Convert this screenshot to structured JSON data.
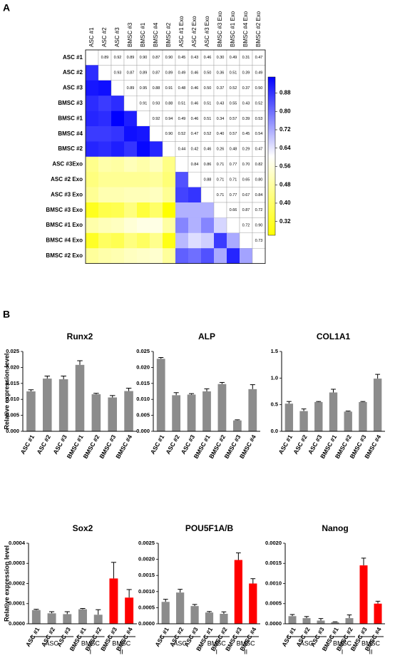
{
  "chart_data": [
    {
      "type": "heatmap",
      "panel_label": "A",
      "columns": [
        "ASC #1",
        "ASC #2",
        "ASC #3",
        "BMSC #3",
        "BMSC #1",
        "BMSC #4",
        "BMSC #2",
        "ASC #1 Exo",
        "ASC #2 Exo",
        "ASC #3 Exo",
        "BMSC #3 Exo",
        "BMSC #1 Exo",
        "BMSC #4 Exo",
        "BMSC #2 Exo"
      ],
      "rows": [
        "ASC #1",
        "ASC #2",
        "ASC #3",
        "BMSC #3",
        "BMSC #1",
        "BMSC #4",
        "BMSC #2",
        "ASC #3Exo",
        "ASC #2 Exo",
        "ASC #3 Exo",
        "BMSC #3 Exo",
        "BMSC #1 Exo",
        "BMSC #4 Exo",
        "BMSC #2 Exo"
      ],
      "values": [
        [
          null,
          0.89,
          0.92,
          0.89,
          0.9,
          0.87,
          0.9,
          0.45,
          0.43,
          0.46,
          0.3,
          0.49,
          0.31,
          0.47
        ],
        [
          null,
          null,
          0.93,
          0.87,
          0.89,
          0.87,
          0.89,
          0.49,
          0.46,
          0.5,
          0.36,
          0.51,
          0.39,
          0.49
        ],
        [
          null,
          null,
          null,
          0.89,
          0.95,
          0.88,
          0.91,
          0.48,
          0.46,
          0.5,
          0.37,
          0.52,
          0.37,
          0.5
        ],
        [
          null,
          null,
          null,
          null,
          0.91,
          0.93,
          0.88,
          0.51,
          0.46,
          0.51,
          0.43,
          0.55,
          0.43,
          0.52
        ],
        [
          null,
          null,
          null,
          null,
          null,
          0.92,
          0.94,
          0.49,
          0.46,
          0.51,
          0.34,
          0.57,
          0.39,
          0.53
        ],
        [
          null,
          null,
          null,
          null,
          null,
          null,
          0.9,
          0.52,
          0.47,
          0.52,
          0.4,
          0.57,
          0.45,
          0.54
        ],
        [
          null,
          null,
          null,
          null,
          null,
          null,
          null,
          0.44,
          0.42,
          0.46,
          0.26,
          0.48,
          0.29,
          0.47
        ],
        [
          null,
          null,
          null,
          null,
          null,
          null,
          null,
          null,
          0.84,
          0.86,
          0.71,
          0.77,
          0.7,
          0.82
        ],
        [
          null,
          null,
          null,
          null,
          null,
          null,
          null,
          null,
          null,
          0.88,
          0.71,
          0.71,
          0.65,
          0.8
        ],
        [
          null,
          null,
          null,
          null,
          null,
          null,
          null,
          null,
          null,
          null,
          0.71,
          0.77,
          0.67,
          0.84
        ],
        [
          null,
          null,
          null,
          null,
          null,
          null,
          null,
          null,
          null,
          null,
          null,
          0.66,
          0.87,
          0.72
        ],
        [
          null,
          null,
          null,
          null,
          null,
          null,
          null,
          null,
          null,
          null,
          null,
          null,
          0.72,
          0.9
        ],
        [
          null,
          null,
          null,
          null,
          null,
          null,
          null,
          null,
          null,
          null,
          null,
          null,
          null,
          0.73
        ],
        [
          null,
          null,
          null,
          null,
          null,
          null,
          null,
          null,
          null,
          null,
          null,
          null,
          null,
          null
        ]
      ],
      "value_labels": [
        [
          null,
          "0.89",
          "0.92",
          "0.89",
          "0.90",
          "0.87",
          "0.90",
          "0.45",
          "0.43",
          "0.46",
          "0.30",
          "0.49",
          "0.31",
          "0.47"
        ],
        [
          null,
          null,
          "0.93",
          "0.87",
          "0.89",
          "0.87",
          "0.89",
          "0.49",
          "0.46",
          "0.50",
          "0.36",
          "0.51",
          "0.39",
          "0.49"
        ],
        [
          null,
          null,
          null,
          "0.89",
          "0.95",
          "0.88",
          "0.91",
          "0.48",
          "0.46",
          "0.50",
          "0.37",
          "0.52",
          "0.37",
          "0.50"
        ],
        [
          null,
          null,
          null,
          null,
          "0.91",
          "0.93",
          "0.88",
          "0.51",
          "0.46",
          "0.51",
          "0.43",
          "0.55",
          "0.43",
          "0.52"
        ],
        [
          null,
          null,
          null,
          null,
          null,
          "0.92",
          "0.94",
          "0.49",
          "0.46",
          "0.51",
          "0.34",
          "0.57",
          "0.39",
          "0.53"
        ],
        [
          null,
          null,
          null,
          null,
          null,
          null,
          "0.90",
          "0.52",
          "0.47",
          "0.52",
          "0.40",
          "0.57",
          "0.45",
          "0.54"
        ],
        [
          null,
          null,
          null,
          null,
          null,
          null,
          null,
          "0.44",
          "0.42",
          "0.46",
          "0.26",
          "0.48",
          "0.29",
          "0.47"
        ],
        [
          null,
          null,
          null,
          null,
          null,
          null,
          null,
          null,
          "0.84",
          "0.86",
          "0.71",
          "0.77",
          "0.70",
          "0.82"
        ],
        [
          null,
          null,
          null,
          null,
          null,
          null,
          null,
          null,
          null,
          "0.88",
          "0.71",
          "0.71",
          "0.65",
          "0.80"
        ],
        [
          null,
          null,
          null,
          null,
          null,
          null,
          null,
          null,
          null,
          null,
          "0.71",
          "0.77",
          "0.67",
          "0.84"
        ],
        [
          null,
          null,
          null,
          null,
          null,
          null,
          null,
          null,
          null,
          null,
          null,
          "0.66",
          "0.87",
          "0.72"
        ],
        [
          null,
          null,
          null,
          null,
          null,
          null,
          null,
          null,
          null,
          null,
          null,
          null,
          "0.72",
          "0.90"
        ],
        [
          null,
          null,
          null,
          null,
          null,
          null,
          null,
          null,
          null,
          null,
          null,
          null,
          null,
          "0.73"
        ],
        [
          null,
          null,
          null,
          null,
          null,
          null,
          null,
          null,
          null,
          null,
          null,
          null,
          null,
          null
        ]
      ],
      "zlim": [
        0.26,
        0.95
      ],
      "zticks": [
        0.88,
        {
          "value": 0.8,
          "label": "0.80"
        },
        0.72,
        0.64,
        0.56,
        0.48,
        {
          "value": 0.4,
          "label": "0.40"
        },
        0.32
      ],
      "colors": [
        "#ffff00",
        "#ffffff",
        "#0000ff"
      ]
    },
    {
      "type": "bar",
      "panel_label": "B",
      "title": "Runx2",
      "ylabel": "Relative expression level",
      "categories": [
        "ASC #1",
        "ASC #2",
        "ASC #3",
        "BMSC #1",
        "BMSC #2",
        "BMSC #3",
        "BMSC #4"
      ],
      "values": [
        0.0125,
        0.0165,
        0.0163,
        0.0208,
        0.0116,
        0.0106,
        0.0126
      ],
      "errors": [
        0.0005,
        0.0008,
        0.001,
        0.0013,
        0.0003,
        0.0006,
        0.0009
      ],
      "colors": [
        "#8c8c8c",
        "#8c8c8c",
        "#8c8c8c",
        "#8c8c8c",
        "#8c8c8c",
        "#8c8c8c",
        "#8c8c8c"
      ],
      "ylim": [
        0,
        0.025
      ],
      "yticks": [
        {
          "value": 0,
          "label": "0.000"
        },
        {
          "value": 0.005,
          "label": "0.005"
        },
        {
          "value": 0.01,
          "label": "0.010"
        },
        {
          "value": 0.015,
          "label": "0.015"
        },
        {
          "value": 0.02,
          "label": "0.020"
        },
        {
          "value": 0.025,
          "label": "0.025"
        }
      ]
    },
    {
      "type": "bar",
      "title": "ALP",
      "categories": [
        "ASC #1",
        "ASC #2",
        "ASC #3",
        "BMSC #1",
        "BMSC #2",
        "BMSC #3",
        "BMSC #4"
      ],
      "values": [
        0.0227,
        0.0113,
        0.0115,
        0.0125,
        0.0148,
        0.0034,
        0.0132
      ],
      "errors": [
        0.0004,
        0.0008,
        0.0003,
        0.0008,
        0.0005,
        0.0002,
        0.0014
      ],
      "colors": [
        "#8c8c8c",
        "#8c8c8c",
        "#8c8c8c",
        "#8c8c8c",
        "#8c8c8c",
        "#8c8c8c",
        "#8c8c8c"
      ],
      "ylim": [
        0,
        0.025
      ],
      "yticks": [
        {
          "value": 0,
          "label": "0.000"
        },
        {
          "value": 0.005,
          "label": "0.005"
        },
        {
          "value": 0.01,
          "label": "0.010"
        },
        {
          "value": 0.015,
          "label": "0.015"
        },
        {
          "value": 0.02,
          "label": "0.020"
        },
        {
          "value": 0.025,
          "label": "0.025"
        }
      ]
    },
    {
      "type": "bar",
      "title": "COL1A1",
      "categories": [
        "ASC #1",
        "ASC #2",
        "ASC #3",
        "BMSC #1",
        "BMSC #2",
        "BMSC #3",
        "BMSC #4"
      ],
      "values": [
        0.52,
        0.38,
        0.55,
        0.73,
        0.37,
        0.55,
        0.99
      ],
      "errors": [
        0.04,
        0.04,
        0.01,
        0.06,
        0.01,
        0.01,
        0.08
      ],
      "colors": [
        "#8c8c8c",
        "#8c8c8c",
        "#8c8c8c",
        "#8c8c8c",
        "#8c8c8c",
        "#8c8c8c",
        "#8c8c8c"
      ],
      "ylim": [
        0,
        1.5
      ],
      "yticks": [
        {
          "value": 0,
          "label": "0.0"
        },
        0.5,
        {
          "value": 1,
          "label": "1.0"
        },
        1.5
      ]
    },
    {
      "type": "bar",
      "title": "Sox2",
      "ylabel": "Relative expression level",
      "categories": [
        "ASC #1",
        "ASC #2",
        "ASC #3",
        "BMSC #1",
        "BMSC #2",
        "BMSC #3",
        "BMSC #4"
      ],
      "values": [
        6.8e-05,
        5.2e-05,
        4.8e-05,
        7.2e-05,
        4.5e-05,
        0.000225,
        0.00013
      ],
      "errors": [
        4e-06,
        8e-06,
        1.2e-05,
        4e-06,
        2.5e-05,
        8e-05,
        4e-05
      ],
      "colors": [
        "#8c8c8c",
        "#8c8c8c",
        "#8c8c8c",
        "#8c8c8c",
        "#8c8c8c",
        "#ff0000",
        "#ff0000"
      ],
      "ylim": [
        0,
        0.0004
      ],
      "yticks": [
        {
          "value": 0,
          "label": "0.0000"
        },
        {
          "value": 0.0001,
          "label": "0.0001"
        },
        {
          "value": 0.0002,
          "label": "0.0002"
        },
        {
          "value": 0.0003,
          "label": "0.0003"
        },
        {
          "value": 0.0004,
          "label": "0.0004"
        }
      ],
      "groups": [
        {
          "name": "ASC",
          "members": [
            0,
            1,
            2
          ]
        },
        {
          "name": "BMSC",
          "sub": "I",
          "members": [
            3,
            4
          ]
        },
        {
          "name": "BMSC",
          "sub": "II",
          "members": [
            5,
            6
          ]
        }
      ]
    },
    {
      "type": "bar",
      "title": "POU5F1A/B",
      "categories": [
        "ASC #1",
        "ASC #2",
        "ASC #3",
        "BMSC #1",
        "BMSC #2",
        "BMSC #3",
        "BMSC #4"
      ],
      "values": [
        0.00068,
        0.00097,
        0.00055,
        0.00035,
        0.00031,
        0.00198,
        0.00125
      ],
      "errors": [
        8e-05,
        0.0001,
        5e-05,
        3e-05,
        6e-05,
        0.00022,
        0.00015
      ],
      "colors": [
        "#8c8c8c",
        "#8c8c8c",
        "#8c8c8c",
        "#8c8c8c",
        "#8c8c8c",
        "#ff0000",
        "#ff0000"
      ],
      "ylim": [
        0,
        0.0025
      ],
      "yticks": [
        {
          "value": 0,
          "label": "0.0000"
        },
        {
          "value": 0.0005,
          "label": "0.0005"
        },
        {
          "value": 0.001,
          "label": "0.0010"
        },
        {
          "value": 0.0015,
          "label": "0.0015"
        },
        {
          "value": 0.002,
          "label": "0.0020"
        },
        {
          "value": 0.0025,
          "label": "0.0025"
        }
      ],
      "groups": [
        {
          "name": "ASC",
          "members": [
            0,
            1,
            2
          ]
        },
        {
          "name": "BMSC",
          "sub": "I",
          "members": [
            3,
            4
          ]
        },
        {
          "name": "BMSC",
          "sub": "II",
          "members": [
            5,
            6
          ]
        }
      ]
    },
    {
      "type": "bar",
      "title": "Nanog",
      "categories": [
        "ASC #1",
        "ASC #2",
        "ASC #3",
        "BMSC #1",
        "BMSC #2",
        "BMSC #3",
        "BMSC #4"
      ],
      "values": [
        0.00019,
        0.00014,
        8e-05,
        4e-05,
        0.00014,
        0.00145,
        0.0005
      ],
      "errors": [
        4e-05,
        4e-05,
        5e-05,
        1e-05,
        8e-05,
        0.00018,
        6e-05
      ],
      "colors": [
        "#8c8c8c",
        "#8c8c8c",
        "#8c8c8c",
        "#8c8c8c",
        "#8c8c8c",
        "#ff0000",
        "#ff0000"
      ],
      "ylim": [
        0,
        0.002
      ],
      "yticks": [
        {
          "value": 0,
          "label": "0.0000"
        },
        {
          "value": 0.0005,
          "label": "0.0005"
        },
        {
          "value": 0.001,
          "label": "0.0010"
        },
        {
          "value": 0.0015,
          "label": "0.0015"
        },
        {
          "value": 0.002,
          "label": "0.0020"
        }
      ],
      "groups": [
        {
          "name": "ASC",
          "members": [
            0,
            1,
            2
          ]
        },
        {
          "name": "BMSC",
          "sub": "I",
          "members": [
            3,
            4
          ]
        },
        {
          "name": "BMSC",
          "sub": "II",
          "members": [
            5,
            6
          ]
        }
      ]
    }
  ]
}
